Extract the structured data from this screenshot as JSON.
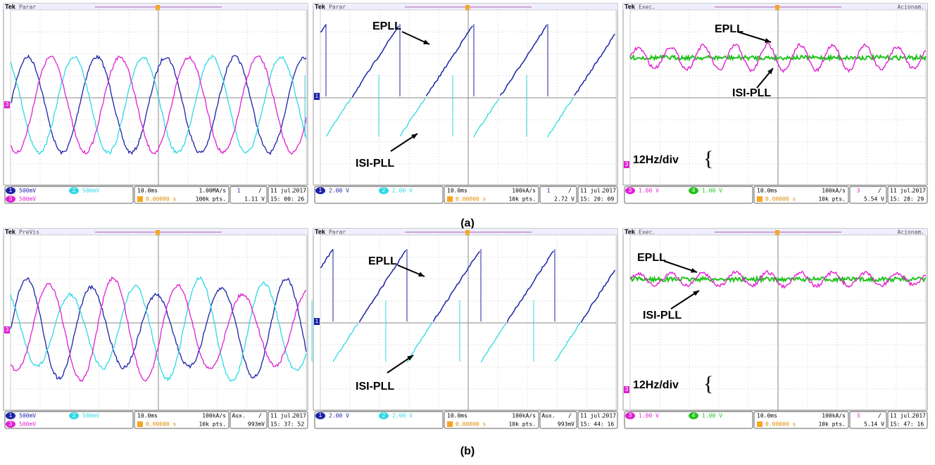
{
  "panels": [
    {
      "brand": "Tek",
      "status": "Parar",
      "annotations": [],
      "markers": [
        "3"
      ],
      "channels": [
        {
          "id": "1",
          "scale": "500mV"
        },
        {
          "id": "2",
          "scale": "500mV"
        },
        {
          "id": "3",
          "scale": "500mV"
        }
      ],
      "timebase": "10.0ms",
      "rate": "1.00MA/s",
      "position": "0.00000 s",
      "points": "100k pts.",
      "trigger_channel": "1",
      "trigger_slope": "/",
      "trigger_level": "1.11 V",
      "date": "11 jul.",
      "year": "2017",
      "time": "15: 00: 26"
    },
    {
      "brand": "Tek",
      "status": "Parar",
      "annotations": [
        "EPLL",
        "ISI-PLL"
      ],
      "markers": [
        "1"
      ],
      "channels": [
        {
          "id": "1",
          "scale": "2.00 V"
        },
        {
          "id": "2",
          "scale": "2.00 V"
        }
      ],
      "timebase": "10.0ms",
      "rate": "100kA/s",
      "position": "0.00000 s",
      "points": "10k pts.",
      "trigger_channel": "1",
      "trigger_slope": "/",
      "trigger_level": "2.72 V",
      "date": "11 jul.",
      "year": "2017",
      "time": "15: 20: 09"
    },
    {
      "brand": "Tek",
      "status": "Exec.",
      "mode": "Acionam.",
      "annotations": [
        "EPLL",
        "ISI-PLL",
        "12Hz/div"
      ],
      "markers": [
        "3"
      ],
      "channels": [
        {
          "id": "3",
          "scale": "1.00 V"
        },
        {
          "id": "4",
          "scale": "1.00 V"
        }
      ],
      "timebase": "10.0ms",
      "rate": "100kA/s",
      "position": "0.00000 s",
      "points": "10k pts.",
      "trigger_channel": "3",
      "trigger_slope": "/",
      "trigger_level": "5.54 V",
      "date": "11 jul.",
      "year": "2017",
      "time": "15: 28: 29"
    },
    {
      "brand": "Tek",
      "status": "PreVis",
      "annotations": [],
      "markers": [
        "3"
      ],
      "channels": [
        {
          "id": "1",
          "scale": "500mV"
        },
        {
          "id": "2",
          "scale": "500mV"
        },
        {
          "id": "3",
          "scale": "500mV"
        }
      ],
      "timebase": "10.0ms",
      "rate": "100kA/s",
      "position": "0.00000 s",
      "points": "10k pts.",
      "trigger_channel": "Aux.",
      "trigger_slope": "/",
      "trigger_level": "993mV",
      "date": "11 jul.",
      "year": "2017",
      "time": "15: 37: 52"
    },
    {
      "brand": "Tek",
      "status": "Parar",
      "annotations": [
        "EPLL",
        "ISI-PLL"
      ],
      "markers": [
        "1"
      ],
      "channels": [
        {
          "id": "1",
          "scale": "2.00 V"
        },
        {
          "id": "2",
          "scale": "2.00 V"
        }
      ],
      "timebase": "10.0ms",
      "rate": "100kA/s",
      "position": "0.00000 s",
      "points": "10k pts.",
      "trigger_channel": "Aux.",
      "trigger_slope": "/",
      "trigger_level": "993mV",
      "date": "11 jul.",
      "year": "2017",
      "time": "15: 44: 16"
    },
    {
      "brand": "Tek",
      "status": "Exec.",
      "mode": "Acionam.",
      "annotations": [
        "EPLL",
        "ISI-PLL",
        "12Hz/div"
      ],
      "markers": [
        "3"
      ],
      "channels": [
        {
          "id": "3",
          "scale": "1.00 V"
        },
        {
          "id": "4",
          "scale": "1.00 V"
        }
      ],
      "timebase": "10.0ms",
      "rate": "100kA/s",
      "position": "0.00000 s",
      "points": "10k pts.",
      "trigger_channel": "3",
      "trigger_slope": "/",
      "trigger_level": "5.14 V",
      "date": "11 jul.",
      "year": "2017",
      "time": "15: 47: 16"
    }
  ],
  "captions": [
    "(a)",
    "(b)"
  ]
}
